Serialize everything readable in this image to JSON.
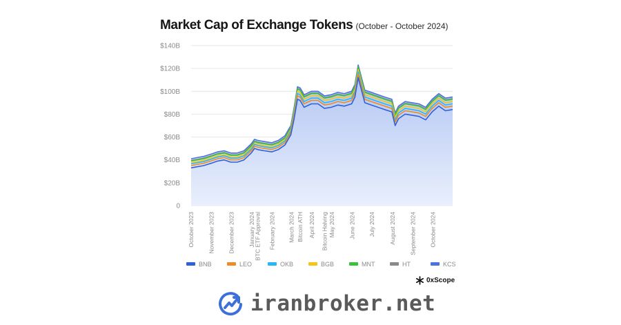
{
  "header": {
    "title": "Market Cap of Exchange Tokens",
    "subtitle": "(October - October 2024)"
  },
  "brand": {
    "name": "0xScope"
  },
  "watermark": {
    "text": "iranbroker.net"
  },
  "colors": {
    "area_fill_top": "#aec3f3",
    "area_fill_bottom": "#e9effc",
    "grid": "#e6e6e6"
  },
  "chart_data": {
    "type": "area",
    "title": "Market Cap of Exchange Tokens",
    "subtitle": "(October - October 2024)",
    "ylim": [
      0,
      140
    ],
    "y_ticks": [
      "0",
      "$20B",
      "$40B",
      "$60B",
      "$80B",
      "$100B",
      "$120B",
      "$140B"
    ],
    "y_tick_values": [
      0,
      20,
      40,
      60,
      80,
      100,
      120,
      140
    ],
    "x_tick_labels": [
      "October 2023",
      "November 2023",
      "December 2023",
      "January 2024",
      "BTC ETF Approval",
      "February 2024",
      "March 2024",
      "Bitcoin ATH",
      "April 2024",
      "Bitcoin Halving",
      "May 2024",
      "June 2024",
      "July 2024",
      "August 2024",
      "September 2024",
      "October 2024"
    ],
    "x_tick_dates": [
      "2023-10-01",
      "2023-11-01",
      "2023-12-01",
      "2024-01-01",
      "2024-01-10",
      "2024-02-01",
      "2024-03-01",
      "2024-03-14",
      "2024-04-01",
      "2024-04-20",
      "2024-05-01",
      "2024-06-01",
      "2024-07-01",
      "2024-08-01",
      "2024-09-01",
      "2024-10-01"
    ],
    "x_range": [
      "2023-10-01",
      "2024-10-31"
    ],
    "grid": true,
    "legend_position": "bottom",
    "dates": [
      "2023-10-01",
      "2023-10-10",
      "2023-10-20",
      "2023-10-31",
      "2023-11-10",
      "2023-11-20",
      "2023-11-30",
      "2023-12-10",
      "2023-12-20",
      "2023-12-31",
      "2024-01-05",
      "2024-01-10",
      "2024-01-20",
      "2024-01-31",
      "2024-02-10",
      "2024-02-20",
      "2024-02-29",
      "2024-03-05",
      "2024-03-10",
      "2024-03-14",
      "2024-03-20",
      "2024-03-31",
      "2024-04-10",
      "2024-04-20",
      "2024-04-30",
      "2024-05-10",
      "2024-05-20",
      "2024-05-31",
      "2024-06-05",
      "2024-06-10",
      "2024-06-20",
      "2024-06-30",
      "2024-07-10",
      "2024-07-20",
      "2024-07-31",
      "2024-08-05",
      "2024-08-10",
      "2024-08-20",
      "2024-08-31",
      "2024-09-10",
      "2024-09-20",
      "2024-09-30",
      "2024-10-10",
      "2024-10-20",
      "2024-10-31"
    ],
    "series": [
      {
        "name": "BNB",
        "color": "#2f62d8",
        "values": [
          33,
          34,
          35,
          37,
          39,
          40,
          38,
          38,
          40,
          46,
          50,
          49,
          48,
          47,
          49,
          53,
          62,
          76,
          93,
          92,
          86,
          89,
          89,
          85,
          86,
          88,
          87,
          89,
          95,
          112,
          90,
          88,
          86,
          84,
          82,
          70,
          76,
          80,
          79,
          78,
          75,
          82,
          87,
          83,
          84
        ]
      },
      {
        "name": "LEO",
        "color": "#f08a24",
        "values": [
          35,
          36,
          37,
          39,
          41,
          42,
          40,
          40,
          42,
          48,
          52,
          51,
          50,
          49,
          51,
          55,
          64,
          79,
          96,
          95,
          89,
          92,
          92,
          88,
          89,
          91,
          90,
          92,
          98,
          115,
          93,
          91,
          89,
          87,
          85,
          73,
          79,
          83,
          82,
          81,
          78,
          85,
          90,
          86,
          87
        ]
      },
      {
        "name": "OKB",
        "color": "#29b6f6",
        "values": [
          36.5,
          37.5,
          38.5,
          40.5,
          42.5,
          43.5,
          41.5,
          41.5,
          43.5,
          49.5,
          53.5,
          52.5,
          51.5,
          50.5,
          52.5,
          56.5,
          65.5,
          81,
          98,
          97,
          91,
          94,
          94,
          90,
          91,
          93,
          92,
          94,
          100,
          117,
          95,
          93,
          91,
          89,
          87,
          75,
          81,
          85,
          84,
          83,
          80,
          87,
          92,
          88,
          89
        ]
      },
      {
        "name": "BGB",
        "color": "#f5c518",
        "values": [
          37.5,
          38.5,
          39.5,
          41.5,
          43.5,
          44.5,
          42.5,
          42.5,
          44.5,
          50.5,
          54.5,
          53.5,
          52.5,
          51.5,
          53.5,
          57.5,
          66.5,
          82.5,
          100,
          99,
          93,
          96,
          96,
          92,
          93,
          95,
          94,
          96,
          102,
          119,
          97,
          95,
          93,
          91,
          89,
          77,
          83,
          87,
          86,
          85,
          82,
          89,
          94,
          90,
          91
        ]
      },
      {
        "name": "MNT",
        "color": "#3cc13b",
        "values": [
          39,
          40,
          41,
          43,
          45,
          46,
          44,
          44,
          46,
          52,
          56,
          55,
          54,
          53,
          55,
          59,
          68,
          84,
          102,
          101,
          95,
          98,
          98,
          94,
          95,
          97,
          96,
          98,
          104,
          121,
          99,
          97,
          95,
          93,
          91,
          79,
          85,
          89,
          88,
          87,
          84,
          91,
          96,
          92,
          93
        ]
      },
      {
        "name": "HT",
        "color": "#8a8a8a",
        "values": [
          39.5,
          40.5,
          41.5,
          43.5,
          45.5,
          46.5,
          44.5,
          44.5,
          46.5,
          52.5,
          56.5,
          55.5,
          54.5,
          53.5,
          55.5,
          59.5,
          68.5,
          84.5,
          102.5,
          101.5,
          95.5,
          98.5,
          98.5,
          94.5,
          95.5,
          97.5,
          96.5,
          98.5,
          104.5,
          121.5,
          99.5,
          97.5,
          95.5,
          93.5,
          91.5,
          79.5,
          85.5,
          89.5,
          88.5,
          87.5,
          84.5,
          91.5,
          96.5,
          92.5,
          93.5
        ]
      },
      {
        "name": "KCS",
        "color": "#4a72e0",
        "values": [
          41,
          42,
          43,
          45,
          47,
          48,
          46,
          46,
          48,
          54,
          58,
          57,
          56,
          55,
          57,
          61,
          70,
          86,
          104,
          103,
          97,
          100,
          100,
          96,
          97,
          99,
          98,
          100,
          106,
          123,
          101,
          99,
          97,
          95,
          93,
          81,
          87,
          91,
          90,
          89,
          86,
          93,
          98,
          94,
          95
        ]
      }
    ]
  }
}
